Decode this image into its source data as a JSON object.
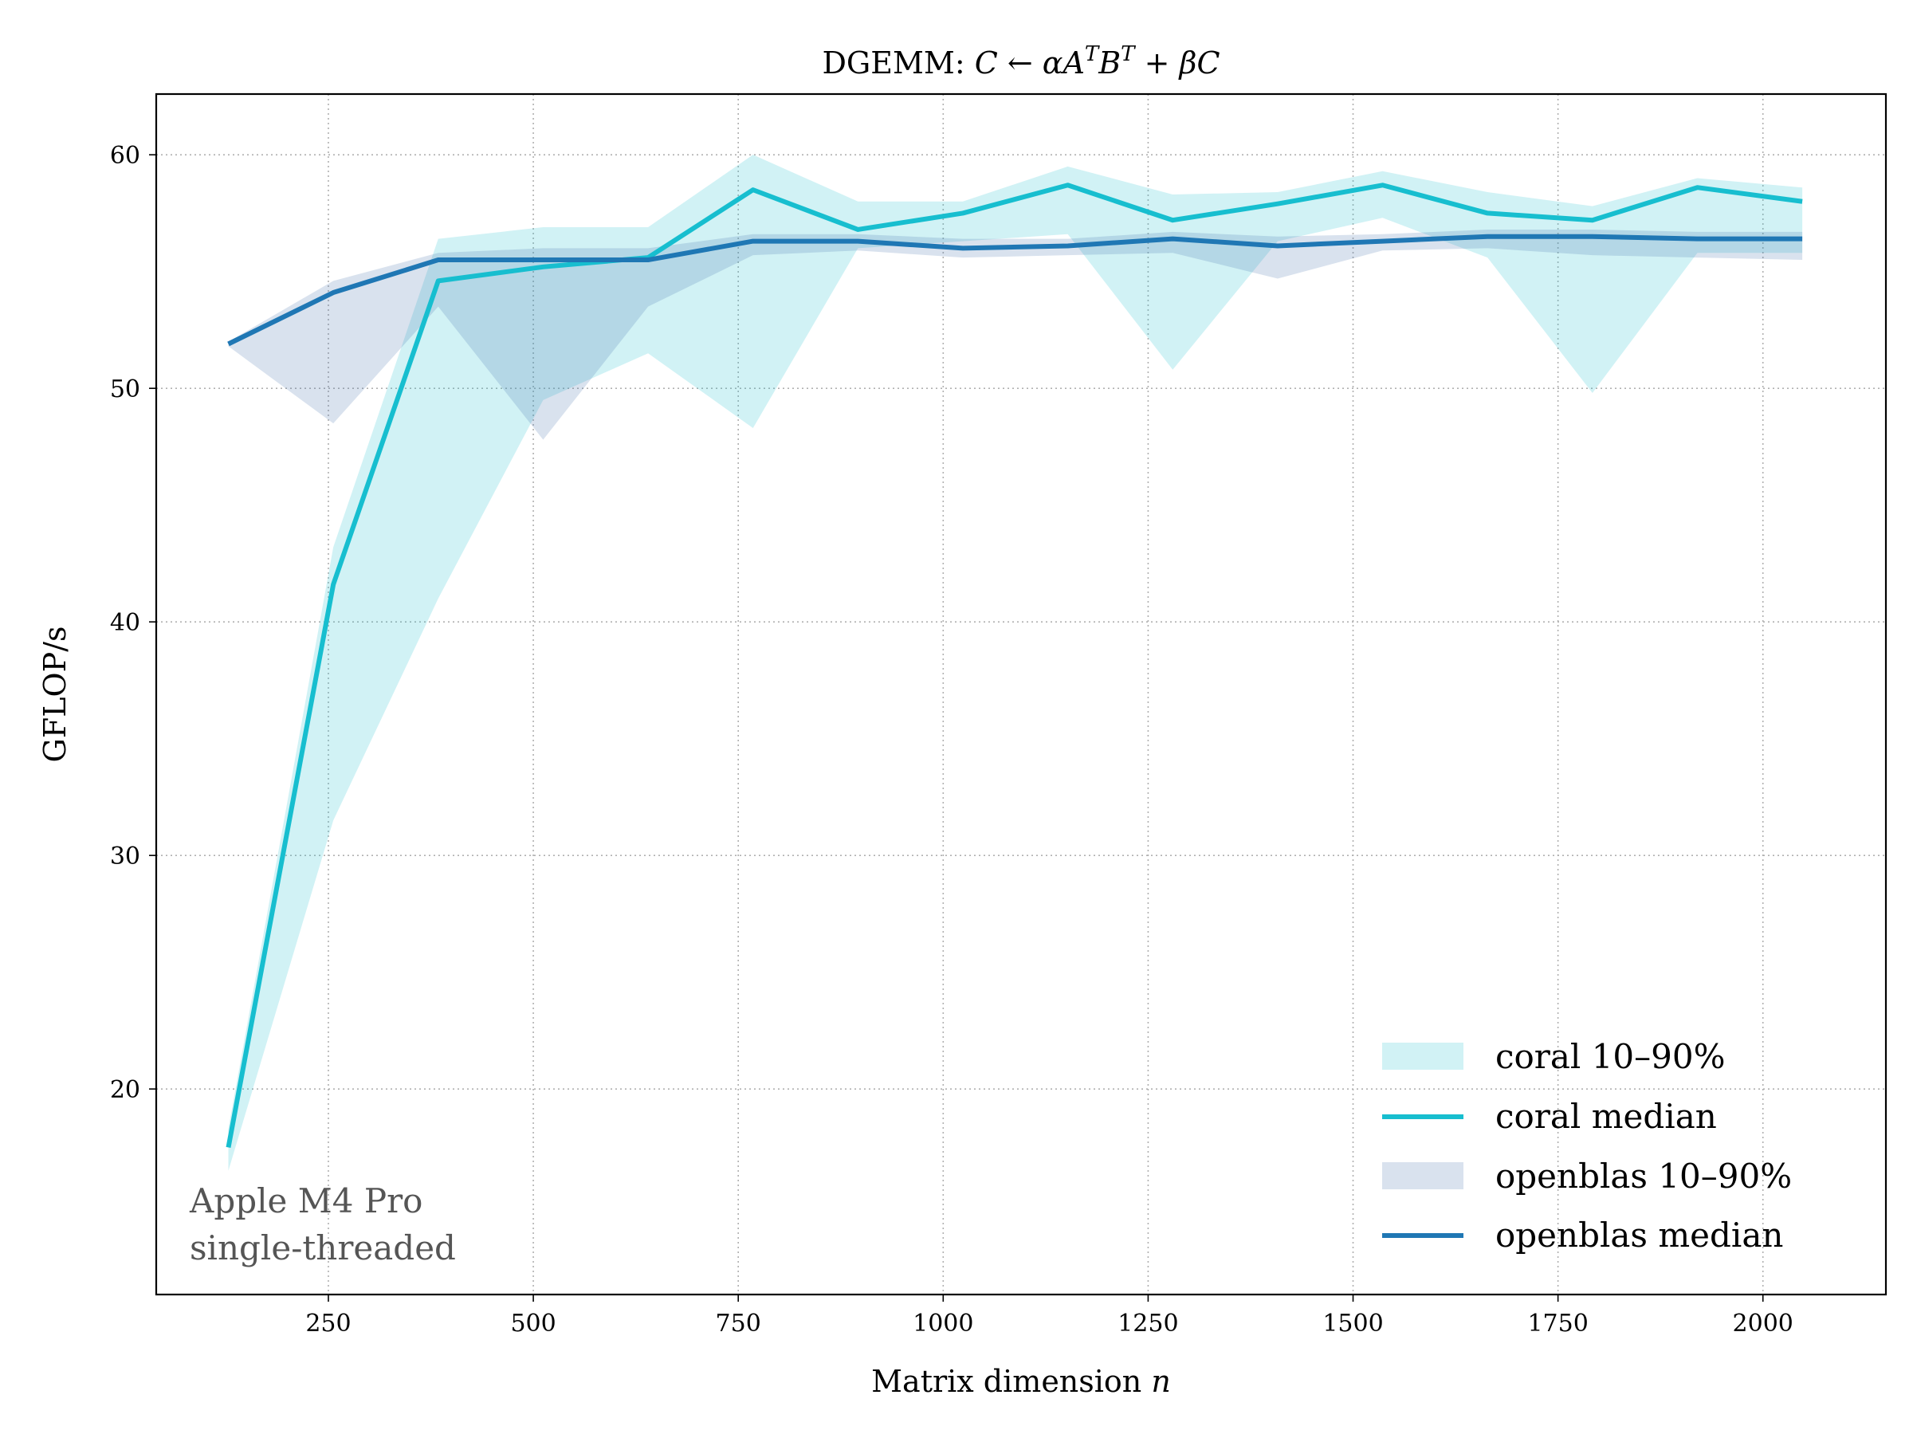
{
  "chart_data": {
    "type": "line",
    "title": {
      "prefix": "DGEMM: ",
      "formula": "C ← αA",
      "sup1": "T",
      "mid": "B",
      "sup2": "T",
      "suffix": " + βC"
    },
    "xlabel": {
      "text": "Matrix dimension ",
      "var": "n"
    },
    "ylabel": "GFLOP/s",
    "xlim": [
      40,
      2150
    ],
    "ylim": [
      11.2,
      62.6
    ],
    "xticks": [
      250,
      500,
      750,
      1000,
      1250,
      1500,
      1750,
      2000
    ],
    "yticks": [
      20,
      30,
      40,
      50,
      60
    ],
    "grid": true,
    "legend_position": "lower right",
    "x": [
      128,
      256,
      384,
      512,
      640,
      768,
      896,
      1024,
      1152,
      1280,
      1408,
      1536,
      1664,
      1792,
      1920,
      2048
    ],
    "series": [
      {
        "name": "coral median",
        "band_name": "coral 10–90%",
        "color": "#17becf",
        "band_color": "#17becf",
        "median": [
          17.5,
          41.6,
          54.6,
          55.2,
          55.6,
          58.5,
          56.8,
          57.5,
          58.7,
          57.2,
          57.9,
          58.7,
          57.5,
          57.2,
          58.6,
          58.0
        ],
        "p10": [
          16.5,
          31.5,
          41.0,
          49.5,
          51.5,
          48.3,
          56.0,
          56.3,
          56.6,
          50.8,
          56.3,
          57.3,
          55.6,
          49.8,
          55.8,
          55.8
        ],
        "p90": [
          18.3,
          43.2,
          56.4,
          56.9,
          56.9,
          60.0,
          58.0,
          58.0,
          59.5,
          58.3,
          58.4,
          59.3,
          58.4,
          57.8,
          59.0,
          58.6
        ]
      },
      {
        "name": "openblas median",
        "band_name": "openblas 10–90%",
        "color": "#1f77b4",
        "band_color": "#3f6fa8",
        "median": [
          51.9,
          54.1,
          55.5,
          55.5,
          55.5,
          56.3,
          56.3,
          56.0,
          56.1,
          56.4,
          56.1,
          56.3,
          56.5,
          56.5,
          56.4,
          56.4
        ],
        "p10": [
          51.8,
          48.5,
          53.5,
          47.8,
          53.5,
          55.7,
          55.9,
          55.6,
          55.7,
          55.8,
          54.7,
          55.9,
          56.0,
          55.7,
          55.6,
          55.5
        ],
        "p90": [
          52.0,
          54.6,
          55.8,
          56.0,
          56.0,
          56.6,
          56.6,
          56.4,
          56.4,
          56.7,
          56.5,
          56.6,
          56.8,
          56.8,
          56.7,
          56.7
        ]
      }
    ],
    "annotation": [
      "Apple M4 Pro",
      "single-threaded"
    ]
  }
}
